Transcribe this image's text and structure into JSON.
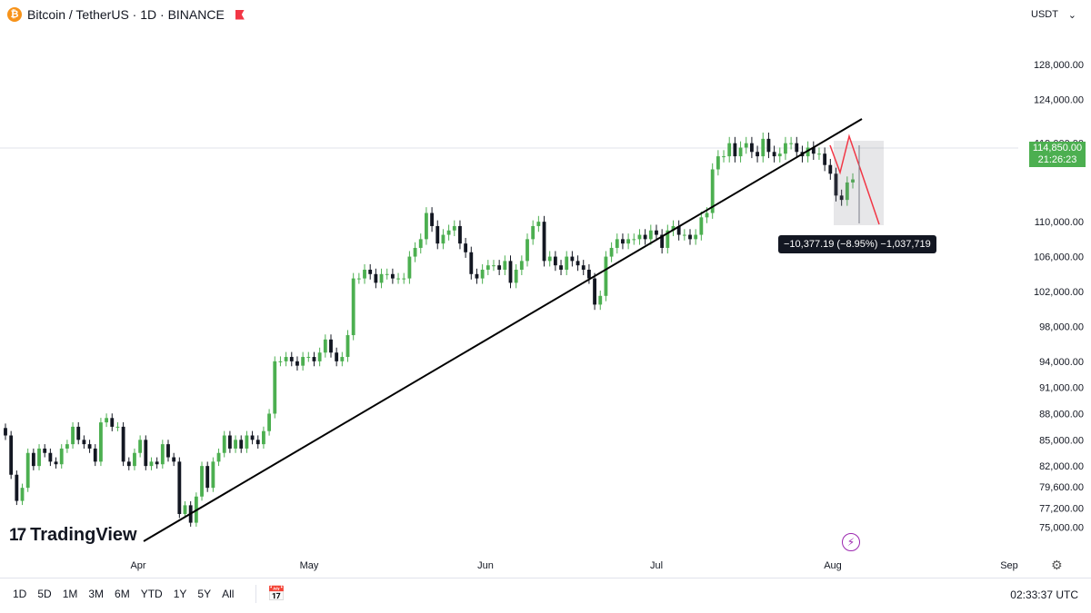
{
  "header": {
    "symbol": "Bitcoin / TetherUS · 1D · BINANCE",
    "currency": "USDT"
  },
  "price_tag": {
    "price": "114,850.00",
    "countdown": "21:26:23"
  },
  "measure": {
    "label": "−10,377.19 (−8.95%) −1,037,719"
  },
  "logo": {
    "mark": "17",
    "text": "TradingView"
  },
  "toolbar": {
    "ranges": [
      "1D",
      "5D",
      "1M",
      "3M",
      "6M",
      "YTD",
      "1Y",
      "5Y",
      "All"
    ],
    "clock": "02:33:37 UTC"
  },
  "colors": {
    "up": "#4caf50",
    "down": "#131722",
    "trendline": "#000000",
    "measure": "#f23645",
    "price_tag": "#4caf50"
  },
  "icons": {
    "coin": "bitcoin-icon",
    "flag": "flag-icon",
    "calendar": "calendar-icon",
    "bolt": "lightning-icon",
    "gear": "gear-icon"
  },
  "chart_data": {
    "type": "candlestick",
    "title": "Bitcoin / TetherUS · 1D · BINANCE",
    "x_labels": [
      "Apr",
      "May",
      "Jun",
      "Jul",
      "Aug",
      "Sep"
    ],
    "y_labels": [
      "128,000.00",
      "124,000.00",
      "119,000.00",
      "110,000.00",
      "106,000.00",
      "102,000.00",
      "98,000.00",
      "94,000.00",
      "91,000.00",
      "88,000.00",
      "85,000.00",
      "82,000.00",
      "79,600.00",
      "77,200.00",
      "75,000.00"
    ],
    "ylim": [
      74000,
      130000
    ],
    "series_note": "daily candles, approximate values read from chart",
    "closes": [
      85500,
      81000,
      78000,
      79500,
      83500,
      82000,
      84000,
      83500,
      82500,
      82200,
      84000,
      84500,
      86500,
      85000,
      84500,
      84000,
      82500,
      87000,
      87500,
      86500,
      86500,
      82500,
      82000,
      83500,
      85000,
      82000,
      82500,
      82200,
      84500,
      83000,
      82500,
      76500,
      77500,
      75500,
      78500,
      82000,
      79500,
      82500,
      83500,
      85500,
      84000,
      85000,
      84000,
      85500,
      85000,
      84500,
      86000,
      88000,
      94000,
      94000,
      94500,
      94000,
      93500,
      94500,
      94500,
      94000,
      95000,
      96500,
      95000,
      94000,
      94500,
      97000,
      103500,
      103500,
      104500,
      104000,
      103000,
      104000,
      104000,
      103500,
      103500,
      103500,
      106000,
      107000,
      108000,
      111000,
      109500,
      107500,
      108500,
      109000,
      109500,
      107500,
      106500,
      104000,
      103500,
      104500,
      105000,
      105000,
      104500,
      105500,
      103000,
      104500,
      105500,
      108000,
      109500,
      110000,
      105500,
      106000,
      105000,
      104500,
      106000,
      105500,
      105000,
      104500,
      103500,
      100500,
      101500,
      106000,
      107000,
      108000,
      107500,
      108000,
      108000,
      108500,
      108000,
      109000,
      108500,
      107000,
      109000,
      109500,
      108500,
      108500,
      108000,
      108500,
      110500,
      111000,
      116000,
      117500,
      117500,
      119000,
      117500,
      118500,
      119000,
      118000,
      117500,
      119500,
      118000,
      117500,
      117800,
      119000,
      119000,
      118000,
      117500,
      118500,
      117800,
      117800,
      116500,
      115500,
      113000,
      112500,
      114500,
      114850
    ]
  }
}
